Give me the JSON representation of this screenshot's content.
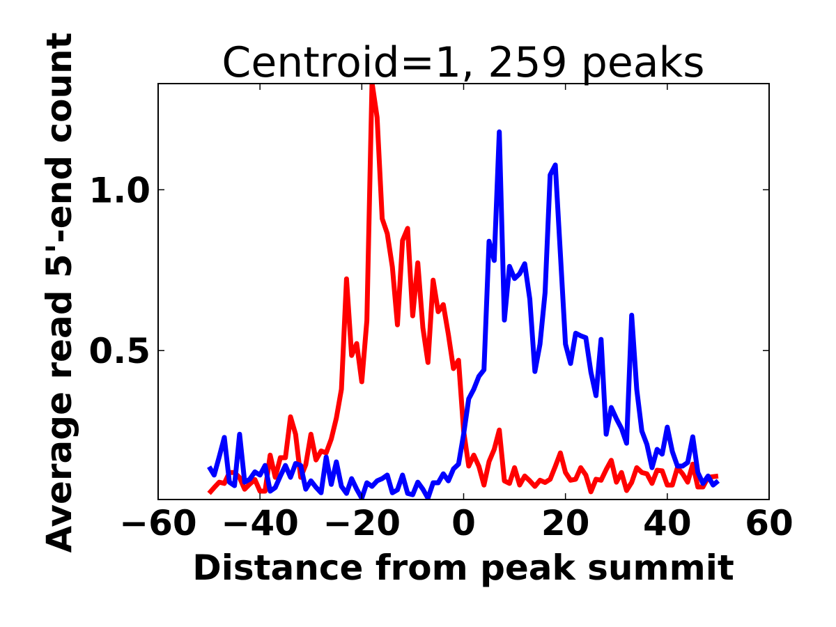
{
  "chart_data": {
    "type": "line",
    "title": "Centroid=1, 259 peaks",
    "xlabel": "Distance from peak summit",
    "ylabel": "Average read 5'-end count",
    "xlim": [
      -60,
      60
    ],
    "ylim": [
      0.037,
      1.33
    ],
    "xticks": [
      -60,
      -40,
      -20,
      0,
      20,
      40,
      60
    ],
    "xtick_labels": [
      "−60",
      "−40",
      "−20",
      "0",
      "20",
      "40",
      "60"
    ],
    "yticks": [
      0.5,
      1.0
    ],
    "ytick_labels": [
      "0.5",
      "1.0"
    ],
    "grid": false,
    "x_start": -50,
    "x_step": 1,
    "series": [
      {
        "name": "red",
        "color": "#ff0000",
        "values": [
          0.056,
          0.074,
          0.091,
          0.087,
          0.121,
          0.121,
          0.105,
          0.069,
          0.085,
          0.099,
          0.063,
          0.063,
          0.175,
          0.106,
          0.167,
          0.167,
          0.294,
          0.24,
          0.106,
          0.145,
          0.24,
          0.16,
          0.188,
          0.182,
          0.225,
          0.29,
          0.38,
          0.723,
          0.485,
          0.522,
          0.403,
          0.593,
          1.333,
          1.225,
          0.91,
          0.864,
          0.76,
          0.58,
          0.842,
          0.88,
          0.608,
          0.773,
          0.571,
          0.463,
          0.719,
          0.621,
          0.643,
          0.55,
          0.444,
          0.47,
          0.25,
          0.141,
          0.175,
          0.14,
          0.082,
          0.155,
          0.193,
          0.253,
          0.095,
          0.087,
          0.136,
          0.082,
          0.11,
          0.095,
          0.078,
          0.097,
          0.09,
          0.1,
          0.14,
          0.182,
          0.121,
          0.097,
          0.1,
          0.136,
          0.113,
          0.061,
          0.1,
          0.097,
          0.13,
          0.159,
          0.091,
          0.121,
          0.065,
          0.09,
          0.136,
          0.121,
          0.117,
          0.087,
          0.128,
          0.126,
          0.082,
          0.082,
          0.136,
          0.117,
          0.091,
          0.147,
          0.076,
          0.076,
          0.106,
          0.108,
          0.11
        ]
      },
      {
        "name": "blue",
        "color": "#0000ff",
        "values": [
          0.139,
          0.113,
          0.17,
          0.23,
          0.091,
          0.08,
          0.24,
          0.091,
          0.1,
          0.123,
          0.113,
          0.143,
          0.063,
          0.074,
          0.11,
          0.143,
          0.106,
          0.149,
          0.143,
          0.069,
          0.095,
          0.075,
          0.058,
          0.169,
          0.084,
          0.154,
          0.078,
          0.056,
          0.102,
          0.069,
          0.041,
          0.089,
          0.078,
          0.095,
          0.102,
          0.113,
          0.058,
          0.067,
          0.113,
          0.056,
          0.052,
          0.091,
          0.069,
          0.041,
          0.089,
          0.089,
          0.117,
          0.095,
          0.132,
          0.147,
          0.24,
          0.35,
          0.38,
          0.42,
          0.44,
          0.84,
          0.78,
          1.18,
          0.595,
          0.762,
          0.724,
          0.739,
          0.77,
          0.66,
          0.435,
          0.52,
          0.68,
          1.046,
          1.077,
          0.8,
          0.52,
          0.46,
          0.554,
          0.546,
          0.54,
          0.433,
          0.36,
          0.535,
          0.24,
          0.323,
          0.288,
          0.258,
          0.212,
          0.61,
          0.379,
          0.25,
          0.208,
          0.136,
          0.193,
          0.178,
          0.262,
          0.186,
          0.141,
          0.141,
          0.152,
          0.232,
          0.121,
          0.087,
          0.11,
          0.082,
          0.095
        ]
      }
    ]
  }
}
